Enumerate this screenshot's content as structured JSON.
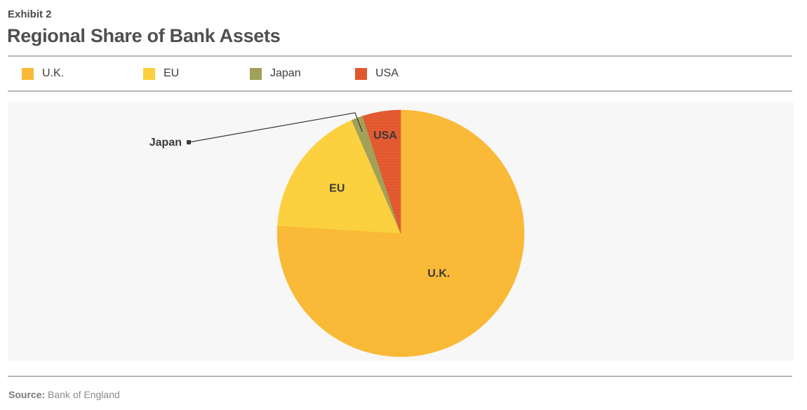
{
  "header": {
    "exhibit": "Exhibit 2",
    "title": "Regional Share of Bank Assets"
  },
  "footer": {
    "source_label": "Source:",
    "source_text": "Bank of England"
  },
  "chart_data": {
    "type": "pie",
    "title": "Regional Share of Bank Assets",
    "legend_position": "top",
    "categories": [
      "U.K.",
      "EU",
      "Japan",
      "USA"
    ],
    "values": [
      76,
      17.5,
      1.5,
      5
    ],
    "colors": [
      "#F9B935",
      "#FCD03C",
      "#A1A058",
      "#E2582E"
    ],
    "slice_labels": [
      "U.K.",
      "EU",
      "",
      "USA"
    ],
    "callout": {
      "category": "Japan",
      "text": "Japan"
    }
  }
}
